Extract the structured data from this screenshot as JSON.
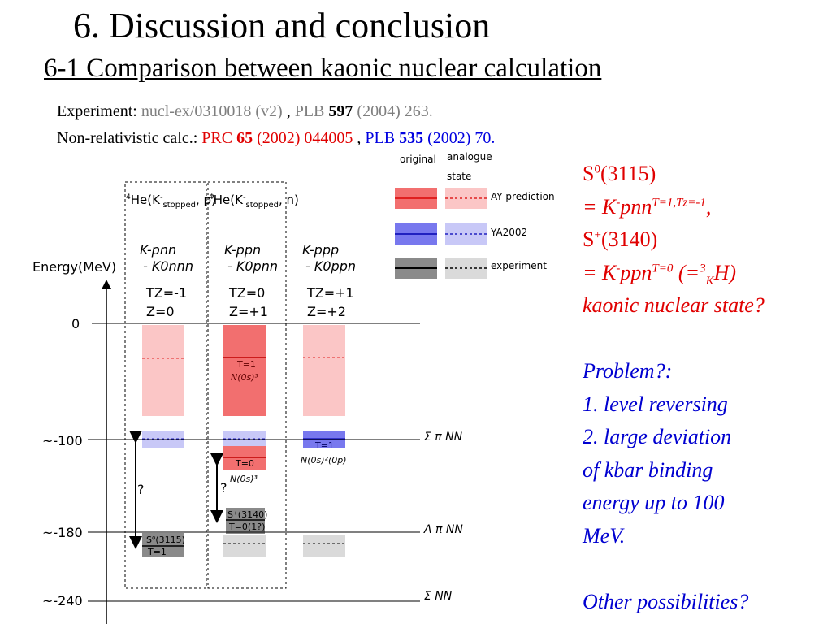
{
  "slide": {
    "title": "6. Discussion and conclusion",
    "subtitle": "6-1 Comparison between kaonic nuclear calculation"
  },
  "references": {
    "experiment_label": "Experiment:",
    "experiment_src": "nucl-ex/0310018 (v2)",
    "experiment_sep": ",",
    "experiment_journal": "PLB",
    "experiment_vol": "597",
    "experiment_rest": "(2004) 263.",
    "calc_label": "Non-relativistic calc.:",
    "calc1_journal": "PRC",
    "calc1_vol": "65",
    "calc1_rest": "(2002) 044005",
    "calc_sep": ",",
    "calc2_journal": "PLB",
    "calc2_vol": "535",
    "calc2_rest": "(2002) 70."
  },
  "notes": {
    "s0": "S",
    "s0_sup": "0",
    "s0_mass": "(3115)",
    "s0_eq_a": "= K",
    "s0_eq_sup": "-",
    "s0_eq_b": "pnn",
    "s0_eq_iso": "T=1,Tz=-1",
    "s0_eq_end": ",",
    "sp": "S",
    "sp_sup": "+",
    "sp_mass": "(3140)",
    "sp_eq_a": "= K",
    "sp_eq_sup": "-",
    "sp_eq_b": "ppn",
    "sp_eq_iso": "T=0",
    "sp_eq_c": " (=",
    "sp_eq_sup3": "3",
    "sp_eq_sub": "K",
    "sp_eq_d": "H)",
    "question": "kaonic nuclear state?",
    "problem": "Problem?:",
    "item1": "1. level reversing",
    "item2_a": "2. large deviation",
    "item2_b": " of kbar binding",
    "item2_c": "energy up to 100",
    "item2_d": "MeV.",
    "other": "Other possibilities?"
  },
  "diagram": {
    "energy_label": "Energy(MeV)",
    "ticks": [
      "0",
      "~-100",
      "~-180",
      "~-240"
    ],
    "thresholds": [
      "Σ π NN",
      "Λ π NN",
      "Σ NN"
    ],
    "legend_head": [
      "original",
      "analogue",
      "state"
    ],
    "legend_items": [
      "AY prediction",
      "YA2002",
      "experiment"
    ],
    "col1": {
      "reaction_a": "4",
      "reaction_b": "He(K",
      "reaction_c": "stopped",
      "reaction_d": ", p)",
      "config_a": "K-pnn",
      "config_b": "- K0nnn",
      "tz": "TZ=-1",
      "z": "Z=0"
    },
    "col2": {
      "reaction_a": "4",
      "reaction_b": "He(K",
      "reaction_c": "stopped",
      "reaction_d": ", n)",
      "config_a": "K-ppn",
      "config_b": "- K0pnn",
      "tz": "TZ=0",
      "z": "Z=+1"
    },
    "col3": {
      "config_a": "K-ppp",
      "config_b": "- K0ppn",
      "tz": "TZ=+1",
      "z": "Z=+2"
    },
    "labels": {
      "t1": "T=1",
      "n0s3": "N(0s)³",
      "t0": "T=0",
      "n0s3b": "N(0s)³",
      "t1b": "T=1",
      "n0s2": "N(0s)²(0p)",
      "sp3140": "S⁺(3140)",
      "t01": "T=0(1?)",
      "s03115": "S⁰(3115)",
      "t1c": "T=1",
      "q1": "?",
      "q2": "?"
    },
    "colors": {
      "ay_dark": "#f26f6f",
      "ay_light": "#fbc6c6",
      "ay_line": "#e02020",
      "ya_dark": "#7878ee",
      "ya_light": "#c8c8f7",
      "ya_line": "#2020c0",
      "exp_dark": "#8a8a8a",
      "exp_light": "#dadada"
    }
  }
}
